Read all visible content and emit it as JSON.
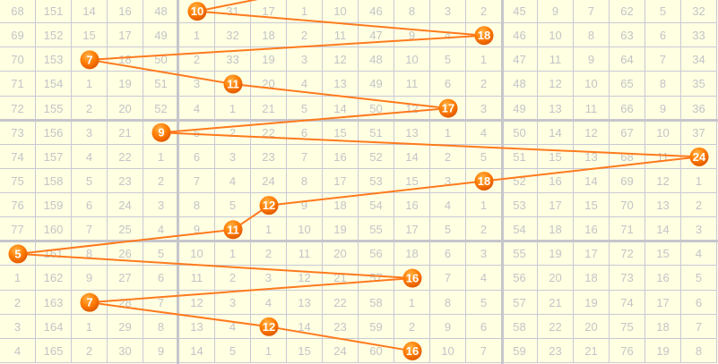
{
  "chart_data": {
    "type": "table",
    "grid": true,
    "colors": {
      "background": "#ffffe2",
      "grid": "#c9c9d6",
      "text": "#c4c4c8",
      "ball": "#ff7a00",
      "line": "#ff7a1e"
    },
    "rows": [
      [
        68,
        151,
        14,
        16,
        48,
        10,
        31,
        17,
        1,
        10,
        46,
        8,
        3,
        2,
        45,
        9,
        7,
        62,
        5,
        32
      ],
      [
        69,
        152,
        15,
        17,
        49,
        1,
        32,
        18,
        2,
        11,
        47,
        9,
        4,
        18,
        46,
        10,
        8,
        63,
        6,
        33
      ],
      [
        70,
        153,
        7,
        18,
        50,
        2,
        33,
        19,
        3,
        12,
        48,
        10,
        5,
        1,
        47,
        11,
        9,
        64,
        7,
        34
      ],
      [
        71,
        154,
        1,
        19,
        51,
        3,
        11,
        20,
        4,
        13,
        49,
        11,
        6,
        2,
        48,
        12,
        10,
        65,
        8,
        35
      ],
      [
        72,
        155,
        2,
        20,
        52,
        4,
        1,
        21,
        5,
        14,
        50,
        12,
        17,
        3,
        49,
        13,
        11,
        66,
        9,
        36
      ],
      [
        73,
        156,
        3,
        21,
        9,
        5,
        2,
        22,
        6,
        15,
        51,
        13,
        1,
        4,
        50,
        14,
        12,
        67,
        10,
        37
      ],
      [
        74,
        157,
        4,
        22,
        1,
        6,
        3,
        23,
        7,
        16,
        52,
        14,
        2,
        5,
        51,
        15,
        13,
        68,
        11,
        24
      ],
      [
        75,
        158,
        5,
        23,
        2,
        7,
        4,
        24,
        8,
        17,
        53,
        15,
        3,
        18,
        52,
        16,
        14,
        69,
        12,
        1
      ],
      [
        76,
        159,
        6,
        24,
        3,
        8,
        5,
        12,
        9,
        18,
        54,
        16,
        4,
        1,
        53,
        17,
        15,
        70,
        13,
        2
      ],
      [
        77,
        160,
        7,
        25,
        4,
        9,
        11,
        1,
        10,
        19,
        55,
        17,
        5,
        2,
        54,
        18,
        16,
        71,
        14,
        3
      ],
      [
        5,
        161,
        8,
        26,
        5,
        10,
        1,
        2,
        11,
        20,
        56,
        18,
        6,
        3,
        55,
        19,
        17,
        72,
        15,
        4
      ],
      [
        1,
        162,
        9,
        27,
        6,
        11,
        2,
        3,
        12,
        21,
        57,
        16,
        7,
        4,
        56,
        20,
        18,
        73,
        16,
        5
      ],
      [
        2,
        163,
        7,
        28,
        7,
        12,
        3,
        4,
        13,
        22,
        58,
        1,
        8,
        5,
        57,
        21,
        19,
        74,
        17,
        6
      ],
      [
        3,
        164,
        1,
        29,
        8,
        13,
        4,
        12,
        14,
        23,
        59,
        2,
        9,
        6,
        58,
        22,
        20,
        75,
        18,
        7
      ],
      [
        4,
        165,
        2,
        30,
        9,
        14,
        5,
        1,
        15,
        24,
        60,
        16,
        10,
        7,
        59,
        23,
        21,
        76,
        19,
        8
      ]
    ],
    "highlighted_columns": [
      5,
      13,
      2,
      6,
      12,
      4,
      19,
      13,
      7,
      6,
      0,
      11,
      2,
      7,
      11
    ]
  }
}
